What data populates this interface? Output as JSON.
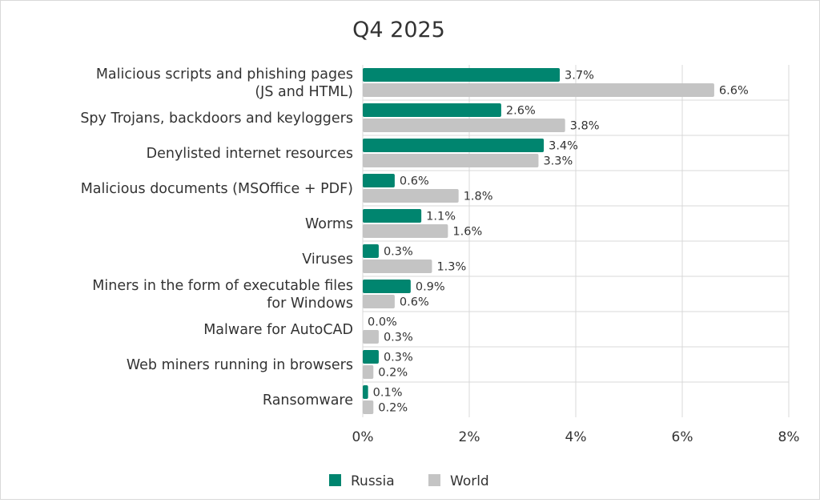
{
  "chart_data": {
    "type": "bar",
    "orientation": "horizontal",
    "title": "Q4 2025",
    "categories": [
      [
        "Malicious scripts and phishing pages",
        "(JS and HTML)"
      ],
      [
        "Spy Trojans, backdoors and keyloggers"
      ],
      [
        "Denylisted internet resources"
      ],
      [
        "Malicious documents (MSOffice + PDF)"
      ],
      [
        "Worms"
      ],
      [
        "Viruses"
      ],
      [
        "Miners in the form of executable files",
        "for Windows"
      ],
      [
        "Malware for AutoCAD"
      ],
      [
        "Web miners running in browsers"
      ],
      [
        "Ransomware"
      ]
    ],
    "series": [
      {
        "name": "Russia",
        "color": "#00856f",
        "values": [
          3.7,
          2.6,
          3.4,
          0.6,
          1.1,
          0.3,
          0.9,
          0.0,
          0.3,
          0.1
        ],
        "labels": [
          "3.7%",
          "2.6%",
          "3.4%",
          "0.6%",
          "1.1%",
          "0.3%",
          "0.9%",
          "0.0%",
          "0.3%",
          "0.1%"
        ]
      },
      {
        "name": "World",
        "color": "#c4c4c4",
        "values": [
          6.6,
          3.8,
          3.3,
          1.8,
          1.6,
          1.3,
          0.6,
          0.3,
          0.2,
          0.2
        ],
        "labels": [
          "6.6%",
          "3.8%",
          "3.3%",
          "1.8%",
          "1.6%",
          "1.3%",
          "0.6%",
          "0.3%",
          "0.2%",
          "0.2%"
        ]
      }
    ],
    "x_axis": {
      "range": [
        0,
        8
      ],
      "ticks": [
        0,
        2,
        4,
        6,
        8
      ],
      "tick_labels": [
        "0%",
        "2%",
        "4%",
        "6%",
        "8%"
      ]
    },
    "grid": "vertical and horizontal",
    "legend_position": "bottom"
  }
}
